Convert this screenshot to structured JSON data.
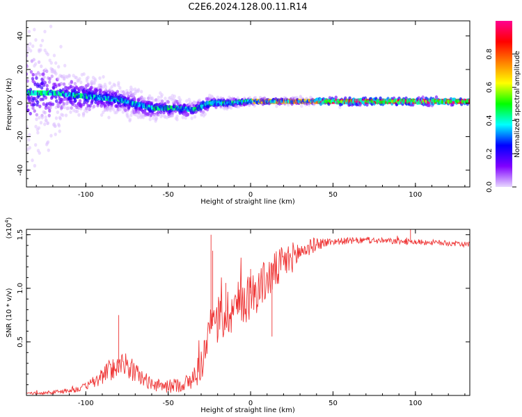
{
  "title": "C2E6.2024.128.00.11.R14",
  "charts": [
    {
      "type": "heatmap",
      "xlabel": "Height of straight line (km)",
      "ylabel": "Frequency (Hz)",
      "xlim": [
        -136,
        133
      ],
      "ylim": [
        -50,
        49
      ],
      "xticks": [
        -100,
        -50,
        0,
        50,
        100
      ],
      "yticks": [
        -40,
        -20,
        0,
        20,
        40
      ],
      "colorbar": {
        "label": "Normalized spectral amplitude",
        "range": [
          0,
          1
        ],
        "ticks": [
          "0.0",
          "0.2",
          "0.4",
          "0.6",
          "0.8"
        ],
        "tick_values": [
          0,
          0.2,
          0.4,
          0.6,
          0.8
        ],
        "colormap": [
          "#e8d8ff",
          "#8000ff",
          "#0000ff",
          "#00ffff",
          "#00ff00",
          "#ffff00",
          "#ff8000",
          "#ff0000",
          "#ff0090"
        ]
      },
      "ridge_center_hz": [
        [
          -120,
          6
        ],
        [
          -100,
          4
        ],
        [
          -80,
          2
        ],
        [
          -60,
          -3
        ],
        [
          -45,
          -3
        ],
        [
          -35,
          -4
        ],
        [
          -25,
          0
        ],
        [
          -15,
          0
        ],
        [
          0,
          1
        ],
        [
          20,
          1
        ],
        [
          40,
          1
        ],
        [
          60,
          1
        ],
        [
          80,
          1
        ],
        [
          100,
          1
        ],
        [
          133,
          1
        ]
      ],
      "ridge_spread_hz": [
        [
          -136,
          40
        ],
        [
          -110,
          12
        ],
        [
          -80,
          8
        ],
        [
          -60,
          7
        ],
        [
          -40,
          6
        ],
        [
          -20,
          3
        ],
        [
          0,
          2
        ],
        [
          50,
          2
        ],
        [
          133,
          2
        ]
      ]
    },
    {
      "type": "line",
      "xlabel": "Height of straight line (km)",
      "ylabel": "SNR (10 * v/v)",
      "scale_label": "(x10",
      "scale_exp": "4",
      "scale_close": ")",
      "xlim": [
        -136,
        133
      ],
      "ylim": [
        0,
        1.55
      ],
      "xticks": [
        -100,
        -50,
        0,
        50,
        100
      ],
      "yticks": [
        "0.5",
        "1.0",
        "1.5"
      ],
      "ytick_values": [
        0.5,
        1.0,
        1.5
      ],
      "color": "#ee3333",
      "envelope": [
        [
          -136,
          0.02
        ],
        [
          -120,
          0.03
        ],
        [
          -105,
          0.06
        ],
        [
          -95,
          0.12
        ],
        [
          -88,
          0.22
        ],
        [
          -82,
          0.28
        ],
        [
          -78,
          0.32
        ],
        [
          -72,
          0.25
        ],
        [
          -65,
          0.16
        ],
        [
          -58,
          0.1
        ],
        [
          -50,
          0.09
        ],
        [
          -42,
          0.11
        ],
        [
          -36,
          0.14
        ],
        [
          -30,
          0.3
        ],
        [
          -25,
          0.6
        ],
        [
          -20,
          0.72
        ],
        [
          -10,
          0.85
        ],
        [
          0,
          0.95
        ],
        [
          10,
          1.1
        ],
        [
          20,
          1.25
        ],
        [
          30,
          1.35
        ],
        [
          40,
          1.42
        ],
        [
          50,
          1.44
        ],
        [
          70,
          1.45
        ],
        [
          90,
          1.44
        ],
        [
          110,
          1.43
        ],
        [
          133,
          1.41
        ]
      ],
      "noise_amplitude": [
        [
          -136,
          0.01
        ],
        [
          -100,
          0.04
        ],
        [
          -85,
          0.13
        ],
        [
          -75,
          0.15
        ],
        [
          -60,
          0.07
        ],
        [
          -40,
          0.09
        ],
        [
          -30,
          0.2
        ],
        [
          -20,
          0.3
        ],
        [
          0,
          0.28
        ],
        [
          20,
          0.22
        ],
        [
          35,
          0.1
        ],
        [
          50,
          0.04
        ],
        [
          133,
          0.03
        ]
      ],
      "spikes": [
        [
          -24,
          1.5
        ],
        [
          -23,
          1.35
        ],
        [
          -80,
          0.75
        ],
        [
          -15,
          1.05
        ],
        [
          0,
          1.18
        ],
        [
          13,
          0.55
        ],
        [
          97,
          1.55
        ]
      ]
    }
  ]
}
